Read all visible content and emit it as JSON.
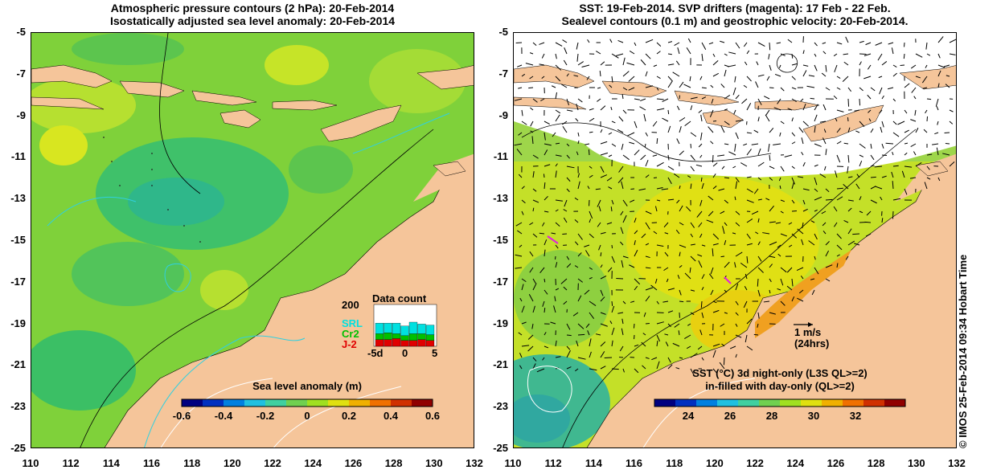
{
  "left_panel": {
    "title_line1": "Atmospheric pressure contours (2 hPa): 20-Feb-2014",
    "title_line2": "Isostatically adjusted sea level anomaly: 20-Feb-2014",
    "colorbar": {
      "title": "Sea level anomaly (m)",
      "ticks": [
        "-0.6",
        "-0.4",
        "-0.2",
        "0",
        "0.2",
        "0.4",
        "0.6"
      ],
      "colors": [
        "#000080",
        "#0030c0",
        "#0080e0",
        "#20c0e0",
        "#40d0a0",
        "#70d050",
        "#a0e020",
        "#e0e010",
        "#f0b000",
        "#f07000",
        "#d03000",
        "#900000"
      ]
    },
    "data_count": {
      "title": "Data count",
      "y_tick": "200",
      "legend": [
        {
          "label": "SRL",
          "color": "#00e0e0"
        },
        {
          "label": "Cr2",
          "color": "#00c000"
        },
        {
          "label": "J-2",
          "color": "#e00000"
        }
      ],
      "x_ticks": [
        "-5d",
        "0",
        "5"
      ]
    }
  },
  "right_panel": {
    "title_line1": "SST: 19-Feb-2014. SVP drifters (magenta): 17 Feb - 22 Feb.",
    "title_line2": "Sealevel contours (0.1 m) and geostrophic velocity: 20-Feb-2014.",
    "scale_arrow": {
      "label_line1": "1 m/s",
      "label_line2": "(24hrs)"
    },
    "colorbar": {
      "title_line1": "SST (°C)  3d night-only (L3S QL>=2)",
      "title_line2": "in-filled with day-only (QL>=2)",
      "ticks": [
        "24",
        "26",
        "28",
        "30",
        "32"
      ],
      "colors": [
        "#000080",
        "#0030c0",
        "#0080e0",
        "#20c0e0",
        "#40d0a0",
        "#70d050",
        "#a0e020",
        "#e0e010",
        "#f0b000",
        "#f07000",
        "#d03000",
        "#900000"
      ]
    }
  },
  "axes": {
    "lat_labels": [
      "-5",
      "-7",
      "-9",
      "-11",
      "-13",
      "-15",
      "-17",
      "-19",
      "-21",
      "-23",
      "-25"
    ],
    "lon_labels": [
      "110",
      "112",
      "114",
      "116",
      "118",
      "120",
      "122",
      "124",
      "126",
      "128",
      "130",
      "132"
    ],
    "lat_range": [
      -25,
      -5
    ],
    "lon_range": [
      110,
      132
    ]
  },
  "credit": "© IMOS 25-Feb-2014 09:34 Hobart Time",
  "colors": {
    "land": "#f5c59a",
    "left_ocean": "#7fd13a",
    "right_ocean": "#9ed64a",
    "cloud_mask": "#ffffff"
  }
}
